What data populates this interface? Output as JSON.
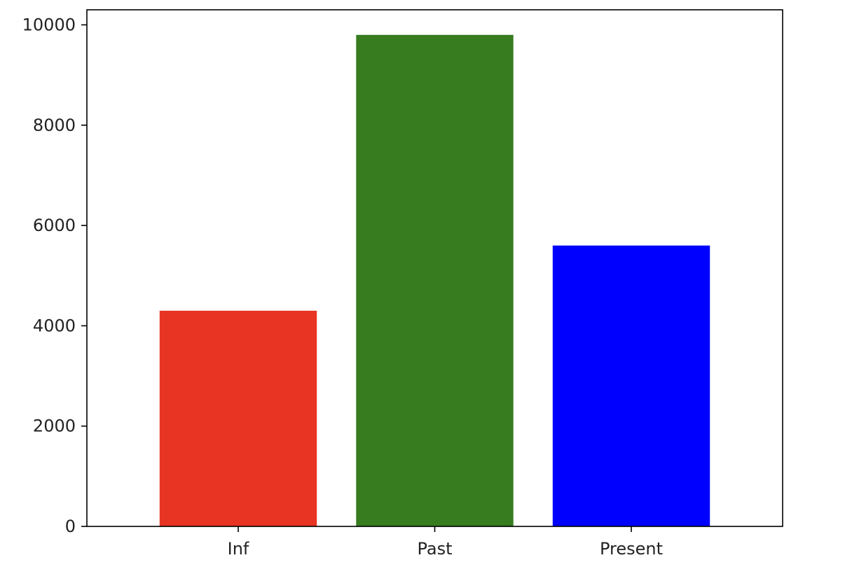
{
  "chart_data": {
    "type": "bar",
    "categories": [
      "Inf",
      "Past",
      "Present"
    ],
    "values": [
      4300,
      9800,
      5600
    ],
    "colors": [
      "#e83422",
      "#377c1f",
      "#0000ff"
    ],
    "title": "",
    "xlabel": "",
    "ylabel": "",
    "ylim": [
      0,
      10300
    ],
    "yticks": [
      0,
      2000,
      4000,
      6000,
      8000,
      10000
    ],
    "ytick_labels": [
      "0",
      "2000",
      "4000",
      "6000",
      "8000",
      "10000"
    ],
    "grid": false,
    "legend": "none"
  }
}
